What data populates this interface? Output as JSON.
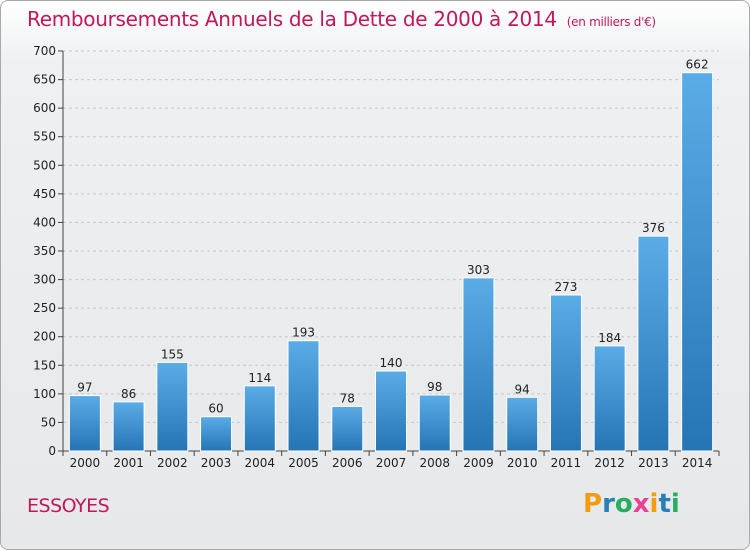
{
  "title": "Remboursements Annuels de la Dette de 2000 à 2014",
  "subtitle": "(en milliers d'€)",
  "commune": "ESSOYES",
  "logo": [
    "P",
    "r",
    "o",
    "x",
    "i",
    "t",
    "i"
  ],
  "colors": {
    "title": "#c2185b",
    "bar_light": "#5aace6",
    "bar_dark": "#2575b5",
    "grid": "#c8c8c8"
  },
  "chart_data": {
    "type": "bar",
    "title": "Remboursements Annuels de la Dette de 2000 à 2014",
    "subtitle": "(en milliers d'€)",
    "categories": [
      "2000",
      "2001",
      "2002",
      "2003",
      "2004",
      "2005",
      "2006",
      "2007",
      "2008",
      "2009",
      "2010",
      "2011",
      "2012",
      "2013",
      "2014"
    ],
    "values": [
      97,
      86,
      155,
      60,
      114,
      193,
      78,
      140,
      98,
      303,
      94,
      273,
      184,
      376,
      662
    ],
    "ylim": [
      0,
      700
    ],
    "yticks": [
      0,
      50,
      100,
      150,
      200,
      250,
      300,
      350,
      400,
      450,
      500,
      550,
      600,
      650,
      700
    ],
    "grid": true,
    "xlabel": "",
    "ylabel": ""
  }
}
